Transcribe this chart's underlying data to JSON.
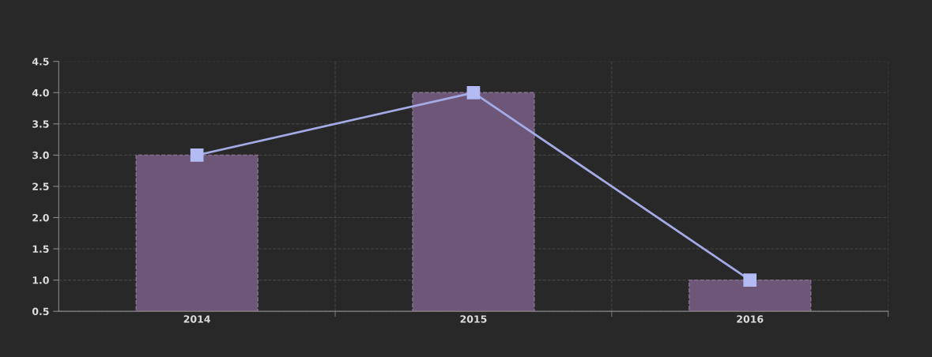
{
  "chart_data": {
    "type": "bar",
    "categories": [
      "2014",
      "2015",
      "2016"
    ],
    "series": [
      {
        "color": "#6e5678",
        "values": [
          3,
          4,
          1
        ]
      },
      {
        "type": "line",
        "color": "#a3aae6",
        "values": [
          3,
          4,
          1
        ]
      }
    ],
    "ylim": [
      0.5,
      4.5
    ],
    "yticks": [
      {
        "value": 0.5,
        "label": "0.5"
      },
      {
        "value": 1,
        "label": "1.0"
      },
      {
        "value": 1.5,
        "label": "1.5"
      },
      {
        "value": 2,
        "label": "2.0"
      },
      {
        "value": 2.5,
        "label": "2.5"
      },
      {
        "value": 3,
        "label": "3.0"
      },
      {
        "value": 3.5,
        "label": "3.5"
      },
      {
        "value": 4,
        "label": "4.0"
      },
      {
        "value": 4.5,
        "label": "4.5"
      }
    ],
    "grid": true,
    "marker": "square",
    "line_style": "solid"
  }
}
